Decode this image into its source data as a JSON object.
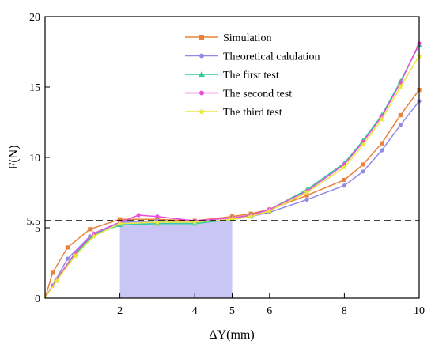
{
  "chart_data": {
    "type": "line",
    "xlabel": "ΔY(mm)",
    "ylabel": "F(N)",
    "xlim": [
      0,
      10
    ],
    "ylim": [
      0,
      20
    ],
    "xticks": [
      2,
      4,
      5,
      6,
      8,
      10
    ],
    "yticks": [
      0,
      5,
      5.5,
      10,
      15,
      20
    ],
    "xtick_labels": [
      "2",
      "4",
      "5",
      "6",
      "8",
      "10"
    ],
    "ytick_labels": [
      "0",
      "5",
      "5.5",
      "10",
      "15",
      "20"
    ],
    "grid": false,
    "legend_position": "top-right",
    "reference_line": {
      "y": 5.5,
      "style": "dashed",
      "color": "#000000"
    },
    "shaded_region": {
      "x": [
        2,
        5
      ],
      "y": [
        0,
        5.5
      ],
      "color": "#c9c6f5"
    },
    "series": [
      {
        "name": "Simulation",
        "color": "#e8823c",
        "marker": "square",
        "x": [
          0,
          0.2,
          0.6,
          1.2,
          2.0,
          3.0,
          4.0,
          5.0,
          5.5,
          6.0,
          7.0,
          8.0,
          8.5,
          9.0,
          9.5,
          10.0
        ],
        "y": [
          0,
          1.8,
          3.6,
          4.9,
          5.6,
          5.6,
          5.5,
          5.8,
          6.0,
          6.3,
          7.3,
          8.4,
          9.5,
          11.0,
          13.0,
          14.8
        ]
      },
      {
        "name": "Theoretical calulation",
        "color": "#8f8ae6",
        "marker": "circle",
        "x": [
          0,
          0.2,
          0.6,
          1.2,
          2.0,
          3.0,
          4.0,
          5.0,
          5.5,
          6.0,
          7.0,
          8.0,
          8.5,
          9.0,
          9.5,
          10.0
        ],
        "y": [
          0,
          0.9,
          2.8,
          4.4,
          5.4,
          5.5,
          5.4,
          5.6,
          5.8,
          6.1,
          7.0,
          8.0,
          9.0,
          10.5,
          12.3,
          14.0
        ]
      },
      {
        "name": "The first test",
        "color": "#2ecc9f",
        "marker": "triangle",
        "x": [
          0,
          0.3,
          0.8,
          1.3,
          2.0,
          3.0,
          4.0,
          5.0,
          5.5,
          6.0,
          7.0,
          8.0,
          8.5,
          9.0,
          9.5,
          10.0
        ],
        "y": [
          0,
          1.3,
          3.1,
          4.5,
          5.2,
          5.3,
          5.3,
          5.6,
          5.9,
          6.3,
          7.7,
          9.6,
          11.2,
          13.0,
          15.4,
          18.0
        ]
      },
      {
        "name": "The second test",
        "color": "#ea4fd8",
        "marker": "circle",
        "x": [
          0,
          0.3,
          0.8,
          1.3,
          2.0,
          2.5,
          3.0,
          4.0,
          5.0,
          5.5,
          6.0,
          7.0,
          8.0,
          8.5,
          9.0,
          9.5,
          10.0
        ],
        "y": [
          0,
          1.3,
          3.2,
          4.6,
          5.4,
          5.9,
          5.8,
          5.5,
          5.7,
          5.9,
          6.3,
          7.6,
          9.5,
          11.1,
          12.9,
          15.3,
          18.1
        ]
      },
      {
        "name": "The third test",
        "color": "#e8e83a",
        "marker": "star",
        "x": [
          0,
          0.3,
          0.8,
          1.3,
          2.0,
          3.0,
          4.0,
          5.0,
          5.5,
          6.0,
          7.0,
          8.0,
          8.5,
          9.0,
          9.5,
          10.0
        ],
        "y": [
          0,
          1.2,
          3.0,
          4.4,
          5.3,
          5.4,
          5.4,
          5.6,
          5.8,
          6.2,
          7.5,
          9.3,
          10.9,
          12.7,
          15.0,
          17.2
        ]
      }
    ]
  }
}
